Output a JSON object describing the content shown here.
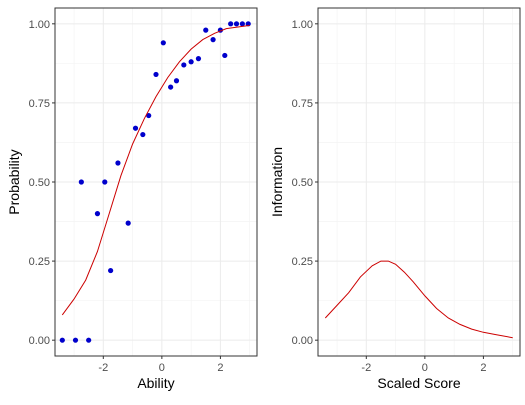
{
  "chart_data": [
    {
      "type": "scatter",
      "xlabel": "Ability",
      "ylabel": "Probability",
      "xlim": [
        -3.65,
        3.25
      ],
      "ylim": [
        -0.05,
        1.05
      ],
      "xticks": [
        -2,
        0,
        2
      ],
      "xtick_labels": [
        "-2",
        "0",
        "2"
      ],
      "yticks": [
        0,
        0.25,
        0.5,
        0.75,
        1
      ],
      "ytick_labels": [
        "0.00",
        "0.25",
        "0.50",
        "0.75",
        "1.00"
      ],
      "grid": true,
      "colors": {
        "points": "#0000cc",
        "curve": "#cc0000"
      },
      "series": [
        {
          "kind": "points",
          "x": [
            -3.4,
            -2.95,
            -2.75,
            -2.5,
            -2.2,
            -1.95,
            -1.75,
            -1.5,
            -1.15,
            -0.9,
            -0.65,
            -0.45,
            -0.2,
            0.05,
            0.3,
            0.5,
            0.75,
            1.0,
            1.25,
            1.5,
            1.75,
            2.0,
            2.15,
            2.35,
            2.55,
            2.75,
            2.95
          ],
          "y": [
            0.0,
            0.0,
            0.5,
            0.0,
            0.4,
            0.5,
            0.22,
            0.56,
            0.37,
            0.67,
            0.65,
            0.71,
            0.84,
            0.94,
            0.8,
            0.82,
            0.87,
            0.88,
            0.89,
            0.98,
            0.95,
            0.98,
            0.9,
            1.0,
            1.0,
            1.0,
            1.0
          ]
        },
        {
          "kind": "line",
          "x": [
            -3.4,
            -3.0,
            -2.6,
            -2.2,
            -1.8,
            -1.4,
            -1.0,
            -0.6,
            -0.2,
            0.2,
            0.6,
            1.0,
            1.4,
            1.8,
            2.2,
            2.6,
            3.0
          ],
          "y": [
            0.08,
            0.13,
            0.19,
            0.28,
            0.4,
            0.52,
            0.62,
            0.7,
            0.77,
            0.83,
            0.88,
            0.92,
            0.95,
            0.97,
            0.985,
            0.99,
            0.995
          ]
        }
      ]
    },
    {
      "type": "line",
      "xlabel": "Scaled Score",
      "ylabel": "Information",
      "xlim": [
        -3.65,
        3.25
      ],
      "ylim": [
        -0.05,
        1.05
      ],
      "xticks": [
        -2,
        0,
        2
      ],
      "xtick_labels": [
        "-2",
        "0",
        "2"
      ],
      "yticks": [
        0,
        0.25,
        0.5,
        0.75,
        1
      ],
      "ytick_labels": [
        "0.00",
        "0.25",
        "0.50",
        "0.75",
        "1.00"
      ],
      "grid": true,
      "colors": {
        "curve": "#cc0000"
      },
      "series": [
        {
          "kind": "line",
          "x": [
            -3.4,
            -3.0,
            -2.6,
            -2.2,
            -1.8,
            -1.5,
            -1.25,
            -1.0,
            -0.7,
            -0.4,
            0.0,
            0.4,
            0.8,
            1.2,
            1.6,
            2.0,
            2.4,
            3.0
          ],
          "y": [
            0.07,
            0.11,
            0.15,
            0.2,
            0.235,
            0.25,
            0.25,
            0.24,
            0.215,
            0.185,
            0.14,
            0.1,
            0.07,
            0.05,
            0.035,
            0.025,
            0.018,
            0.008
          ]
        }
      ]
    }
  ]
}
